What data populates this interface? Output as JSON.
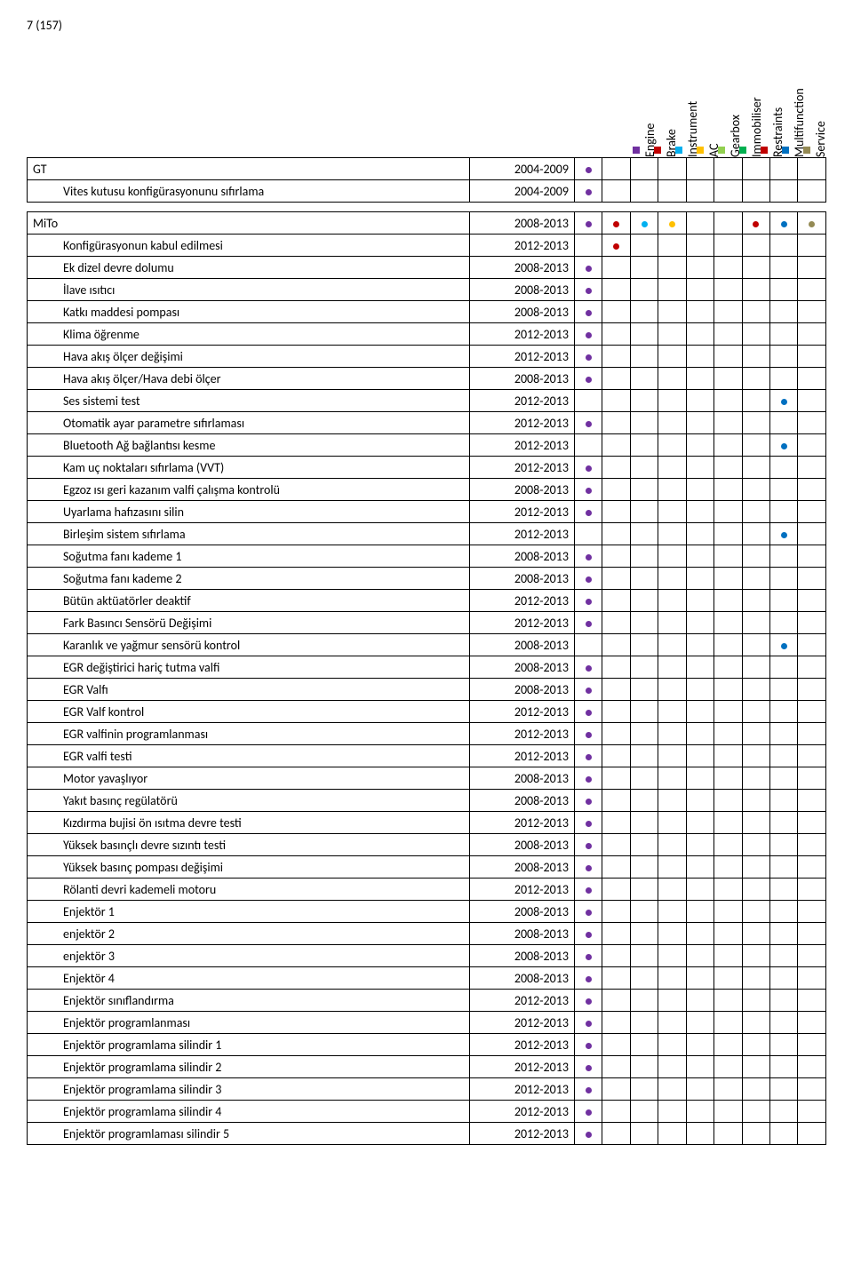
{
  "page_number": "7 (157)",
  "categories": [
    {
      "key": "engine",
      "label": "Engine",
      "color": "#7030a0"
    },
    {
      "key": "brake",
      "label": "Brake",
      "color": "#c00000"
    },
    {
      "key": "instrument",
      "label": "Instrument",
      "color": "#00b0f0"
    },
    {
      "key": "ac",
      "label": "AC",
      "color": "#ffc000"
    },
    {
      "key": "gearbox",
      "label": "Gearbox",
      "color": "#92d050"
    },
    {
      "key": "immobiliser",
      "label": "Immobiliser",
      "color": "#00b050"
    },
    {
      "key": "restraints",
      "label": "Restraints",
      "color": "#c00000"
    },
    {
      "key": "multifunction",
      "label": "Multifunction",
      "color": "#0070c0"
    },
    {
      "key": "service",
      "label": "Service",
      "color": "#948a54"
    }
  ],
  "tables": [
    {
      "rows": [
        {
          "name": "GT",
          "year": "2004-2009",
          "indent": false,
          "dots": {
            "engine": true
          }
        },
        {
          "name": "Vites kutusu konfigürasyonunu sıfırlama",
          "year": "2004-2009",
          "indent": true,
          "dots": {
            "engine": true
          }
        }
      ]
    },
    {
      "rows": [
        {
          "name": "MiTo",
          "year": "2008-2013",
          "indent": false,
          "dots": {
            "engine": true,
            "brake": true,
            "instrument": true,
            "ac": true,
            "restraints": true,
            "multifunction": true,
            "service": true
          }
        },
        {
          "name": "Konfigürasyonun kabul edilmesi",
          "year": "2012-2013",
          "indent": true,
          "dots": {
            "brake": true
          }
        },
        {
          "name": "Ek dizel devre dolumu",
          "year": "2008-2013",
          "indent": true,
          "dots": {
            "engine": true
          }
        },
        {
          "name": "İlave ısıtıcı",
          "year": "2008-2013",
          "indent": true,
          "dots": {
            "engine": true
          }
        },
        {
          "name": "Katkı maddesi pompası",
          "year": "2008-2013",
          "indent": true,
          "dots": {
            "engine": true
          }
        },
        {
          "name": "Klima öğrenme",
          "year": "2012-2013",
          "indent": true,
          "dots": {
            "engine": true
          }
        },
        {
          "name": "Hava akış ölçer değişimi",
          "year": "2012-2013",
          "indent": true,
          "dots": {
            "engine": true
          }
        },
        {
          "name": "Hava akış ölçer/Hava debi ölçer",
          "year": "2008-2013",
          "indent": true,
          "dots": {
            "engine": true
          }
        },
        {
          "name": "Ses sistemi test",
          "year": "2012-2013",
          "indent": true,
          "dots": {
            "multifunction": true
          }
        },
        {
          "name": "Otomatik ayar parametre sıfırlaması",
          "year": "2012-2013",
          "indent": true,
          "dots": {
            "engine": true
          }
        },
        {
          "name": "Bluetooth Ağ bağlantısı kesme",
          "year": "2012-2013",
          "indent": true,
          "dots": {
            "multifunction": true
          }
        },
        {
          "name": "Kam uç noktaları sıfırlama (VVT)",
          "year": "2012-2013",
          "indent": true,
          "dots": {
            "engine": true
          }
        },
        {
          "name": "Egzoz ısı geri kazanım valfi çalışma kontrolü",
          "year": "2008-2013",
          "indent": true,
          "dots": {
            "engine": true
          }
        },
        {
          "name": "Uyarlama hafızasını silin",
          "year": "2012-2013",
          "indent": true,
          "dots": {
            "engine": true
          }
        },
        {
          "name": "Birleşim sistem sıfırlama",
          "year": "2012-2013",
          "indent": true,
          "dots": {
            "multifunction": true
          }
        },
        {
          "name": "Soğutma fanı kademe 1",
          "year": "2008-2013",
          "indent": true,
          "dots": {
            "engine": true
          }
        },
        {
          "name": "Soğutma fanı kademe 2",
          "year": "2008-2013",
          "indent": true,
          "dots": {
            "engine": true
          }
        },
        {
          "name": "Bütün aktüatörler deaktif",
          "year": "2012-2013",
          "indent": true,
          "dots": {
            "engine": true
          }
        },
        {
          "name": "Fark Basıncı Sensörü Değişimi",
          "year": "2012-2013",
          "indent": true,
          "dots": {
            "engine": true
          }
        },
        {
          "name": "Karanlık ve yağmur sensörü kontrol",
          "year": "2008-2013",
          "indent": true,
          "dots": {
            "multifunction": true
          }
        },
        {
          "name": "EGR değiştirici hariç tutma valfi",
          "year": "2008-2013",
          "indent": true,
          "dots": {
            "engine": true
          }
        },
        {
          "name": "EGR Valfı",
          "year": "2008-2013",
          "indent": true,
          "dots": {
            "engine": true
          }
        },
        {
          "name": "EGR Valf kontrol",
          "year": "2012-2013",
          "indent": true,
          "dots": {
            "engine": true
          }
        },
        {
          "name": "EGR valfinin programlanması",
          "year": "2012-2013",
          "indent": true,
          "dots": {
            "engine": true
          }
        },
        {
          "name": "EGR valfi testi",
          "year": "2012-2013",
          "indent": true,
          "dots": {
            "engine": true
          }
        },
        {
          "name": "Motor yavaşlıyor",
          "year": "2008-2013",
          "indent": true,
          "dots": {
            "engine": true
          }
        },
        {
          "name": "Yakıt basınç regülatörü",
          "year": "2008-2013",
          "indent": true,
          "dots": {
            "engine": true
          }
        },
        {
          "name": "Kızdırma bujisi ön ısıtma devre testi",
          "year": "2012-2013",
          "indent": true,
          "dots": {
            "engine": true
          }
        },
        {
          "name": "Yüksek basınçlı devre sızıntı testi",
          "year": "2008-2013",
          "indent": true,
          "dots": {
            "engine": true
          }
        },
        {
          "name": "Yüksek basınç pompası değişimi",
          "year": "2008-2013",
          "indent": true,
          "dots": {
            "engine": true
          }
        },
        {
          "name": "Rölanti devri kademeli motoru",
          "year": "2012-2013",
          "indent": true,
          "dots": {
            "engine": true
          }
        },
        {
          "name": "Enjektör 1",
          "year": "2008-2013",
          "indent": true,
          "dots": {
            "engine": true
          }
        },
        {
          "name": "enjektör 2",
          "year": "2008-2013",
          "indent": true,
          "dots": {
            "engine": true
          }
        },
        {
          "name": "enjektör 3",
          "year": "2008-2013",
          "indent": true,
          "dots": {
            "engine": true
          }
        },
        {
          "name": "Enjektör 4",
          "year": "2008-2013",
          "indent": true,
          "dots": {
            "engine": true
          }
        },
        {
          "name": "Enjektör sınıflandırma",
          "year": "2012-2013",
          "indent": true,
          "dots": {
            "engine": true
          }
        },
        {
          "name": "Enjektör programlanması",
          "year": "2012-2013",
          "indent": true,
          "dots": {
            "engine": true
          }
        },
        {
          "name": "Enjektör programlama silindir 1",
          "year": "2012-2013",
          "indent": true,
          "dots": {
            "engine": true
          }
        },
        {
          "name": "Enjektör programlama silindir 2",
          "year": "2012-2013",
          "indent": true,
          "dots": {
            "engine": true
          }
        },
        {
          "name": "Enjektör programlama silindir 3",
          "year": "2012-2013",
          "indent": true,
          "dots": {
            "engine": true
          }
        },
        {
          "name": "Enjektör programlama silindir 4",
          "year": "2012-2013",
          "indent": true,
          "dots": {
            "engine": true
          }
        },
        {
          "name": "Enjektör programlaması silindir 5",
          "year": "2012-2013",
          "indent": true,
          "dots": {
            "engine": true
          }
        }
      ]
    }
  ]
}
